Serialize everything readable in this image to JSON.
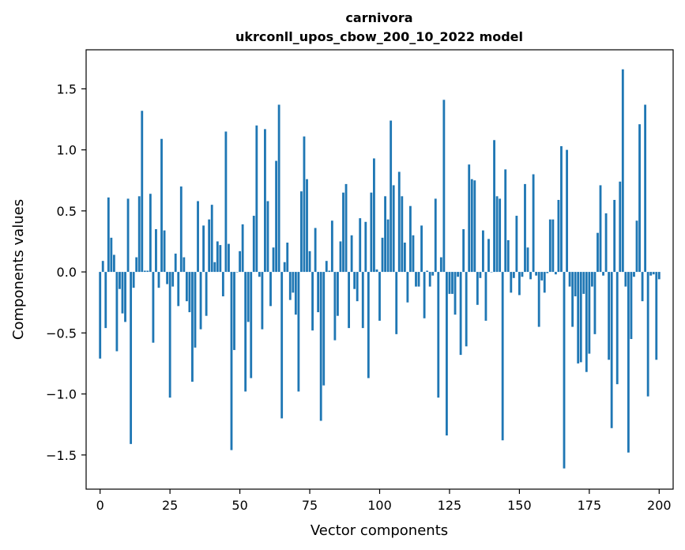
{
  "chart_data": {
    "type": "bar",
    "title_lines": [
      "carnivora",
      "ukrconll_upos_cbow_200_10_2022 model"
    ],
    "xlabel": "Vector components",
    "ylabel": "Components values",
    "xlim": [
      -5,
      205
    ],
    "ylim": [
      -1.78,
      1.82
    ],
    "xticks": [
      0,
      25,
      50,
      75,
      100,
      125,
      150,
      175,
      200
    ],
    "yticks": [
      -1.5,
      -1.0,
      -0.5,
      0.0,
      0.5,
      1.0,
      1.5
    ],
    "ytick_labels": [
      "−1.5",
      "−1.0",
      "−0.5",
      "0.0",
      "0.5",
      "1.0",
      "1.5"
    ],
    "bar_color": "#1f77b4",
    "values": [
      -0.71,
      0.09,
      -0.46,
      0.61,
      0.28,
      0.14,
      -0.65,
      -0.14,
      -0.34,
      -0.41,
      0.6,
      -1.41,
      -0.13,
      0.12,
      0.62,
      1.32,
      0.01,
      0.01,
      0.64,
      -0.58,
      0.35,
      -0.13,
      1.09,
      0.34,
      -0.1,
      -1.03,
      -0.12,
      0.15,
      -0.28,
      0.7,
      0.12,
      -0.24,
      -0.33,
      -0.9,
      -0.62,
      0.58,
      -0.47,
      0.38,
      -0.36,
      0.43,
      0.55,
      0.08,
      0.25,
      0.22,
      -0.2,
      1.15,
      0.23,
      -1.46,
      -0.64,
      0.0,
      0.17,
      0.39,
      -0.98,
      -0.41,
      -0.87,
      0.46,
      1.2,
      -0.04,
      -0.47,
      1.17,
      0.58,
      -0.28,
      0.2,
      0.91,
      1.37,
      -1.2,
      0.08,
      0.24,
      -0.23,
      -0.17,
      -0.35,
      -0.98,
      0.66,
      1.11,
      0.76,
      0.17,
      -0.48,
      0.36,
      -0.33,
      -1.22,
      -0.93,
      0.09,
      0.01,
      0.42,
      -0.56,
      -0.36,
      0.25,
      0.65,
      0.72,
      -0.46,
      0.3,
      -0.14,
      -0.24,
      0.44,
      -0.46,
      0.41,
      -0.87,
      0.65,
      0.93,
      0.02,
      -0.4,
      0.28,
      0.62,
      0.43,
      1.24,
      0.71,
      -0.51,
      0.82,
      0.62,
      0.24,
      -0.25,
      0.54,
      0.3,
      -0.12,
      -0.12,
      0.38,
      -0.38,
      0.01,
      -0.12,
      -0.03,
      0.6,
      -1.03,
      0.12,
      1.41,
      -1.34,
      -0.18,
      -0.18,
      -0.35,
      -0.04,
      -0.68,
      0.35,
      -0.61,
      0.88,
      0.76,
      0.75,
      -0.27,
      -0.05,
      0.34,
      -0.4,
      0.27,
      0.0,
      1.08,
      0.62,
      0.6,
      -1.38,
      0.84,
      0.26,
      -0.17,
      -0.05,
      0.46,
      -0.19,
      -0.04,
      0.72,
      0.2,
      -0.06,
      0.8,
      -0.03,
      -0.45,
      -0.07,
      -0.17,
      -0.01,
      0.43,
      0.43,
      -0.02,
      0.59,
      1.03,
      -1.61,
      1.0,
      -0.12,
      -0.45,
      -0.2,
      -0.75,
      -0.74,
      -0.18,
      -0.82,
      -0.67,
      -0.12,
      -0.51,
      0.32,
      0.71,
      -0.03,
      0.48,
      -0.72,
      -1.28,
      0.59,
      -0.92,
      0.74,
      1.66,
      -0.12,
      -1.48,
      -0.55,
      -0.04,
      0.42,
      1.21,
      -0.24,
      1.37,
      -1.02,
      -0.03,
      -0.02,
      -0.72,
      -0.06
    ]
  }
}
